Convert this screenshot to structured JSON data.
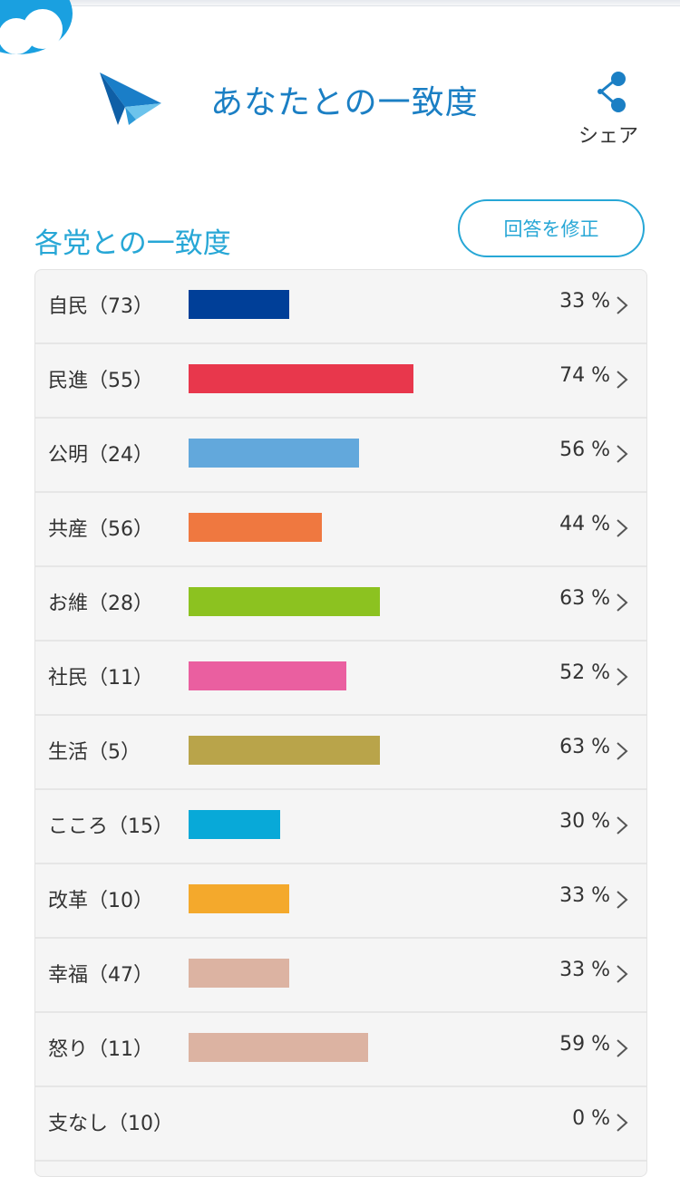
{
  "header": {
    "title": "あなたとの一致度",
    "share_label": "シェア"
  },
  "section": {
    "title": "各党との一致度",
    "edit_button": "回答を修正"
  },
  "parties": [
    {
      "name": "自民（73）",
      "percent_label": "33 %",
      "value": 33,
      "color": "#003f98"
    },
    {
      "name": "民進（55）",
      "percent_label": "74 %",
      "value": 74,
      "color": "#e8374c"
    },
    {
      "name": "公明（24）",
      "percent_label": "56 %",
      "value": 56,
      "color": "#62a8dc"
    },
    {
      "name": "共産（56）",
      "percent_label": "44 %",
      "value": 44,
      "color": "#ef7840"
    },
    {
      "name": "お維（28）",
      "percent_label": "63 %",
      "value": 63,
      "color": "#8cc220"
    },
    {
      "name": "社民（11）",
      "percent_label": "52 %",
      "value": 52,
      "color": "#ea5fa0"
    },
    {
      "name": "生活（5）",
      "percent_label": "63 %",
      "value": 63,
      "color": "#b9a44a"
    },
    {
      "name": "こころ（15）",
      "percent_label": "30 %",
      "value": 30,
      "color": "#08a9d8"
    },
    {
      "name": "改革（10）",
      "percent_label": "33 %",
      "value": 33,
      "color": "#f4a92c"
    },
    {
      "name": "幸福（47）",
      "percent_label": "33 %",
      "value": 33,
      "color": "#dcb3a2"
    },
    {
      "name": "怒り（11）",
      "percent_label": "59 %",
      "value": 59,
      "color": "#dcb3a2"
    },
    {
      "name": "支なし（10）",
      "percent_label": "0 %",
      "value": 0,
      "color": "#dcb3a2"
    }
  ],
  "icons": {
    "logo": "paper-plane-icon",
    "share": "share-icon",
    "chevron": "chevron-right-icon"
  }
}
